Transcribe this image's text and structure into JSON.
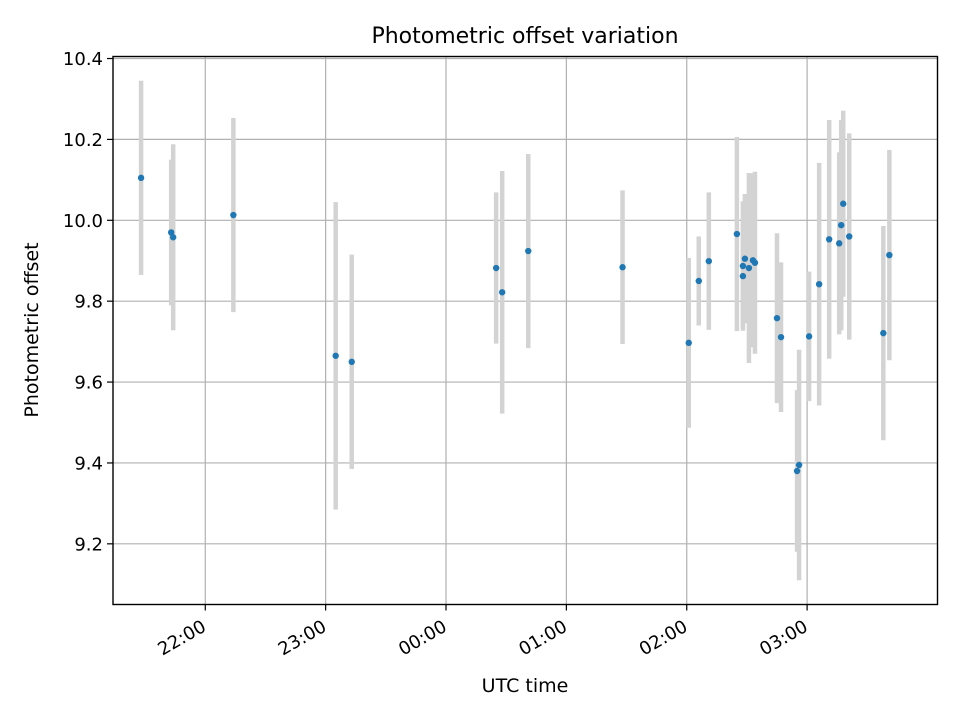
{
  "chart_data": {
    "type": "scatter",
    "title": "Photometric offset variation",
    "xlabel": "UTC time",
    "ylabel": "Photometric offset",
    "grid": true,
    "xlim": [
      "21:14",
      "04:05"
    ],
    "ylim": [
      9.05,
      10.405
    ],
    "x_ticks": [
      "22:00",
      "23:00",
      "00:00",
      "01:00",
      "02:00",
      "03:00"
    ],
    "y_ticks": [
      "9.2",
      "9.4",
      "9.6",
      "9.8",
      "10.0",
      "10.2",
      "10.4"
    ],
    "colors": {
      "point": "#1f77b4",
      "errorbar": "#d3d3d3",
      "grid": "#b0b0b0"
    },
    "series": [
      {
        "points": [
          {
            "x": "21:28",
            "y": 10.105,
            "err": 0.24
          },
          {
            "x": "21:43",
            "y": 9.97,
            "err": 0.18
          },
          {
            "x": "21:44",
            "y": 9.958,
            "err": 0.23
          },
          {
            "x": "22:14",
            "y": 10.013,
            "err": 0.24
          },
          {
            "x": "23:05",
            "y": 9.665,
            "err": 0.38
          },
          {
            "x": "23:13",
            "y": 9.65,
            "err": 0.265
          },
          {
            "x": "00:25",
            "y": 9.882,
            "err": 0.187
          },
          {
            "x": "00:28",
            "y": 9.822,
            "err": 0.3
          },
          {
            "x": "00:41",
            "y": 9.924,
            "err": 0.24
          },
          {
            "x": "01:28",
            "y": 9.884,
            "err": 0.19
          },
          {
            "x": "02:01",
            "y": 9.697,
            "err": 0.21
          },
          {
            "x": "02:06",
            "y": 9.85,
            "err": 0.11
          },
          {
            "x": "02:11",
            "y": 9.899,
            "err": 0.17
          },
          {
            "x": "02:25",
            "y": 9.966,
            "err": 0.24
          },
          {
            "x": "02:28",
            "y": 9.887,
            "err": 0.16
          },
          {
            "x": "02:28",
            "y": 9.862,
            "err": 0.13
          },
          {
            "x": "02:29",
            "y": 9.905,
            "err": 0.16
          },
          {
            "x": "02:31",
            "y": 9.882,
            "err": 0.235
          },
          {
            "x": "02:33",
            "y": 9.901,
            "err": 0.215
          },
          {
            "x": "02:34",
            "y": 9.895,
            "err": 0.225
          },
          {
            "x": "02:45",
            "y": 9.758,
            "err": 0.21
          },
          {
            "x": "02:47",
            "y": 9.711,
            "err": 0.185
          },
          {
            "x": "02:55",
            "y": 9.38,
            "err": 0.2
          },
          {
            "x": "02:56",
            "y": 9.395,
            "err": 0.285
          },
          {
            "x": "03:01",
            "y": 9.713,
            "err": 0.16
          },
          {
            "x": "03:06",
            "y": 9.842,
            "err": 0.3
          },
          {
            "x": "03:11",
            "y": 9.953,
            "err": 0.295
          },
          {
            "x": "03:16",
            "y": 9.943,
            "err": 0.225
          },
          {
            "x": "03:17",
            "y": 9.988,
            "err": 0.26
          },
          {
            "x": "03:18",
            "y": 10.041,
            "err": 0.23
          },
          {
            "x": "03:21",
            "y": 9.96,
            "err": 0.255
          },
          {
            "x": "03:38",
            "y": 9.721,
            "err": 0.265
          },
          {
            "x": "03:41",
            "y": 9.914,
            "err": 0.26
          }
        ]
      }
    ]
  }
}
